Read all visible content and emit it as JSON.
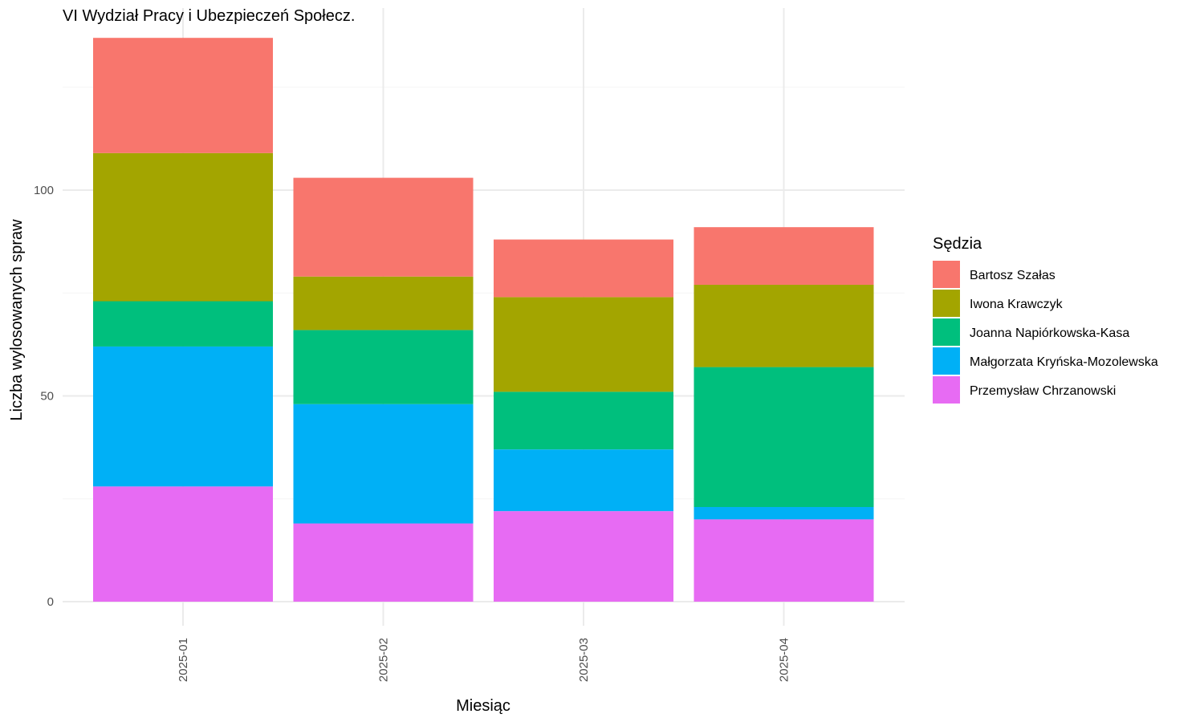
{
  "chart_data": {
    "type": "bar",
    "stacked": true,
    "title": "VI Wydział Pracy i Ubezpieczeń Społecz.",
    "xlabel": "Miesiąc",
    "ylabel": "Liczba wylosowanych spraw",
    "categories": [
      "2025-01",
      "2025-02",
      "2025-03",
      "2025-04"
    ],
    "ylim": [
      0,
      143
    ],
    "yticks": [
      0,
      50,
      100
    ],
    "grid": true,
    "legend": {
      "title": "Sędzia",
      "position": "right"
    },
    "series": [
      {
        "name": "Przemysław Chrzanowski",
        "color": "#E76BF3",
        "values": [
          28,
          19,
          22,
          20
        ]
      },
      {
        "name": "Małgorzata Kryńska-Mozolewska",
        "color": "#00B0F6",
        "values": [
          34,
          29,
          15,
          3
        ]
      },
      {
        "name": "Joanna Napiórkowska-Kasa",
        "color": "#00BF7D",
        "values": [
          11,
          18,
          14,
          34
        ]
      },
      {
        "name": "Iwona Krawczyk",
        "color": "#A3A500",
        "values": [
          36,
          13,
          23,
          20
        ]
      },
      {
        "name": "Bartosz Szałas",
        "color": "#F8766D",
        "values": [
          28,
          24,
          14,
          14
        ]
      }
    ],
    "legend_order": [
      "Bartosz Szałas",
      "Iwona Krawczyk",
      "Joanna Napiórkowska-Kasa",
      "Małgorzata Kryńska-Mozolewska",
      "Przemysław Chrzanowski"
    ]
  }
}
